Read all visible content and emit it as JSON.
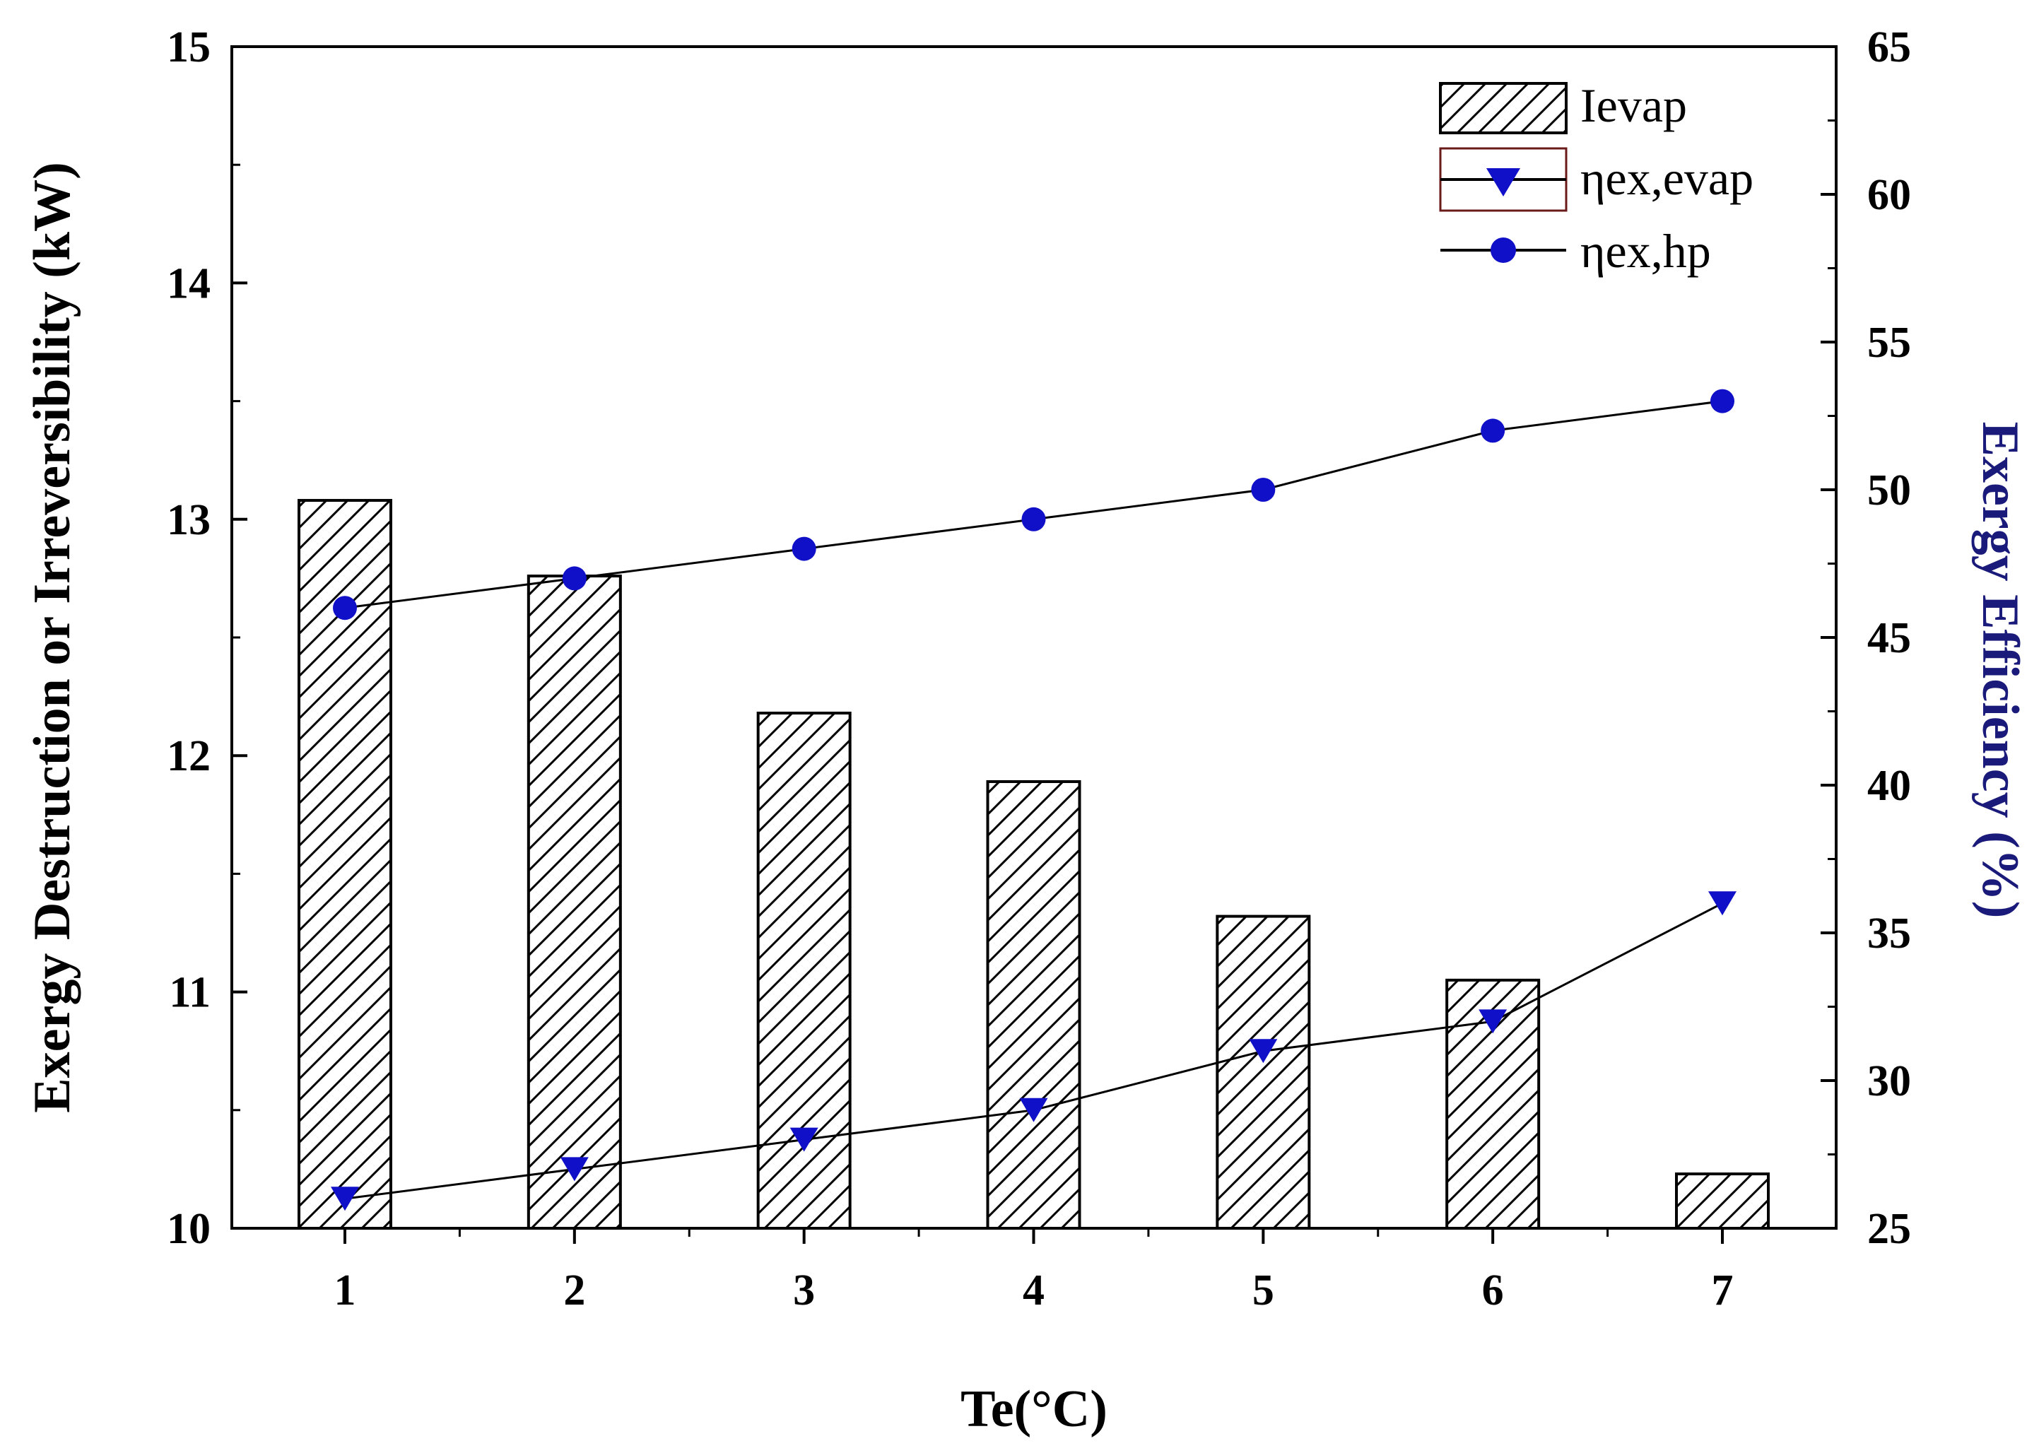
{
  "chart_data": {
    "type": "bar+line",
    "xlabel": "Te(°C)",
    "ylabel_left": "Exergy Destruction or Irreversibility (kW)",
    "ylabel_right": "Exergy Efficiency (%)",
    "categories": [
      "1",
      "2",
      "3",
      "4",
      "5",
      "6",
      "7"
    ],
    "ylim_left": [
      10,
      15
    ],
    "ylim_right": [
      25,
      65
    ],
    "yticks_left": [
      "10",
      "11",
      "12",
      "13",
      "14",
      "15"
    ],
    "yticks_right": [
      "25",
      "30",
      "35",
      "40",
      "45",
      "50",
      "55",
      "60",
      "65"
    ],
    "grid": false,
    "legend_position": "top-right",
    "series": [
      {
        "name": "Ievap",
        "kind": "bar",
        "axis": "left",
        "pattern": "hatch",
        "values": [
          13.08,
          12.76,
          12.18,
          11.89,
          11.32,
          11.05,
          10.23
        ]
      },
      {
        "name": "ηex,evap",
        "kind": "line",
        "axis": "right",
        "marker": "triangle-down",
        "values": [
          26,
          27,
          28,
          29,
          31,
          32,
          36
        ]
      },
      {
        "name": "ηex,hp",
        "kind": "line",
        "axis": "right",
        "marker": "circle",
        "values": [
          46,
          47,
          48,
          49,
          50,
          52,
          53
        ]
      }
    ],
    "colors": {
      "marker": "#1010c8",
      "line": "#000000",
      "axis": "#000000",
      "right_label": "#1a1a7a",
      "legend_box": "#6b1a1a"
    }
  }
}
